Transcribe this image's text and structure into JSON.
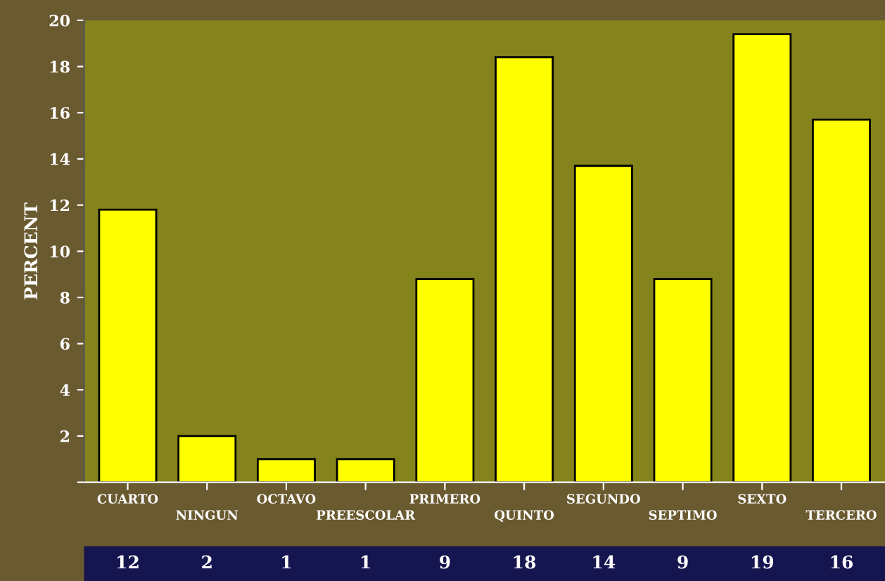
{
  "chart_data": {
    "type": "bar",
    "ylabel": "PERCENT",
    "categories": [
      "CUARTO",
      "NINGUN",
      "OCTAVO",
      "PREESCOLAR",
      "PRIMERO",
      "QUINTO",
      "SEGUNDO",
      "SEPTIMO",
      "SEXTO",
      "TERCERO"
    ],
    "values": [
      11.8,
      2.0,
      1.0,
      1.0,
      8.8,
      18.4,
      13.7,
      8.8,
      19.4,
      15.7
    ],
    "value_labels": [
      "12",
      "2",
      "1",
      "1",
      "9",
      "18",
      "14",
      "9",
      "19",
      "16"
    ],
    "color": "#ffff00",
    "ylim": [
      0,
      20
    ],
    "yticks": [
      {
        "value": 0,
        "label": null
      },
      2,
      4,
      6,
      8,
      10,
      12,
      14,
      16,
      18,
      20
    ],
    "grid": false
  }
}
